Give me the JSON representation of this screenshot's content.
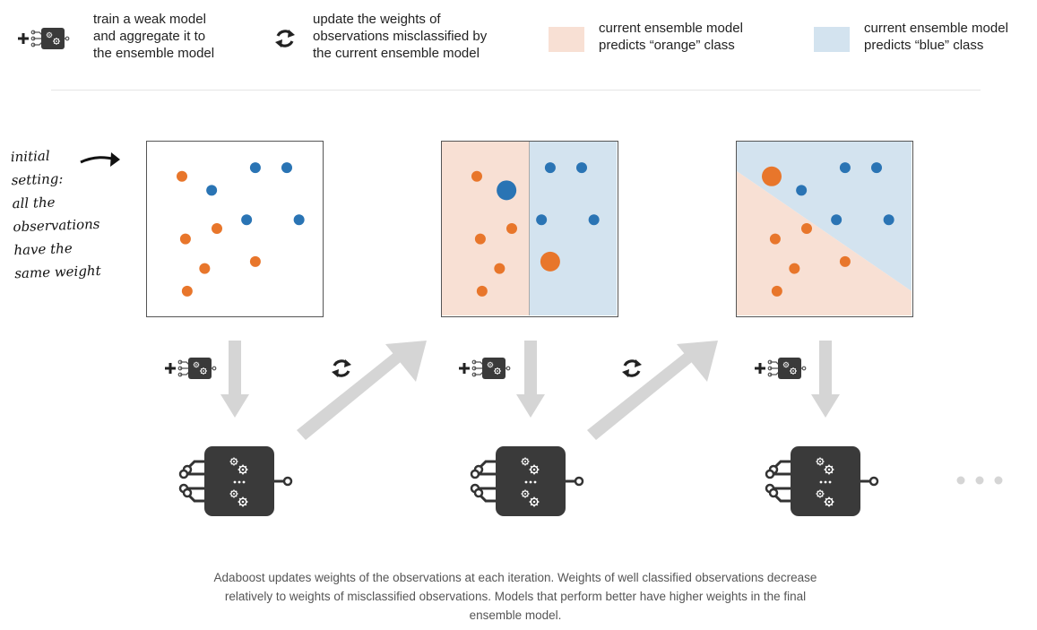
{
  "legend": {
    "train_text": "train a weak model\nand aggregate it to\nthe ensemble model",
    "update_text": "update the weights of\nobservations misclassified by\nthe current ensemble model",
    "orange_text": "current ensemble model\npredicts “orange” class",
    "blue_text": "current ensemble model\npredicts “blue” class"
  },
  "initial_note": "initial\nsetting:\nall the\nobservations\nhave the\nsame weight",
  "caption": "Adaboost updates weights of the observations at each iteration. Weights of well classified observations decrease\nrelatively to weights of misclassified observations. Models that perform better have higher weights in the final\nensemble model.",
  "colors": {
    "orange_point": "#e8762b",
    "blue_point": "#2a74b4",
    "orange_region": "#f8e0d4",
    "blue_region": "#d3e3ef",
    "arrow": "#d5d5d5",
    "model_box": "#3a3a3a"
  },
  "panels": [
    {
      "name": "iteration-1",
      "regions": "none",
      "points": [
        {
          "cls": "orange",
          "x": 0.2,
          "y": 0.2,
          "w": 1
        },
        {
          "cls": "blue",
          "x": 0.62,
          "y": 0.15,
          "w": 1
        },
        {
          "cls": "blue",
          "x": 0.8,
          "y": 0.15,
          "w": 1
        },
        {
          "cls": "blue",
          "x": 0.37,
          "y": 0.28,
          "w": 1
        },
        {
          "cls": "blue",
          "x": 0.57,
          "y": 0.45,
          "w": 1
        },
        {
          "cls": "blue",
          "x": 0.87,
          "y": 0.45,
          "w": 1
        },
        {
          "cls": "orange",
          "x": 0.4,
          "y": 0.5,
          "w": 1
        },
        {
          "cls": "orange",
          "x": 0.22,
          "y": 0.56,
          "w": 1
        },
        {
          "cls": "orange",
          "x": 0.62,
          "y": 0.69,
          "w": 1
        },
        {
          "cls": "orange",
          "x": 0.33,
          "y": 0.73,
          "w": 1
        },
        {
          "cls": "orange",
          "x": 0.23,
          "y": 0.86,
          "w": 1
        }
      ]
    },
    {
      "name": "iteration-2",
      "regions": "vertical",
      "points": [
        {
          "cls": "orange",
          "x": 0.2,
          "y": 0.2,
          "w": 1
        },
        {
          "cls": "blue",
          "x": 0.62,
          "y": 0.15,
          "w": 1
        },
        {
          "cls": "blue",
          "x": 0.8,
          "y": 0.15,
          "w": 1
        },
        {
          "cls": "blue",
          "x": 0.37,
          "y": 0.28,
          "w": 2
        },
        {
          "cls": "blue",
          "x": 0.57,
          "y": 0.45,
          "w": 1
        },
        {
          "cls": "blue",
          "x": 0.87,
          "y": 0.45,
          "w": 1
        },
        {
          "cls": "orange",
          "x": 0.4,
          "y": 0.5,
          "w": 1
        },
        {
          "cls": "orange",
          "x": 0.22,
          "y": 0.56,
          "w": 1
        },
        {
          "cls": "orange",
          "x": 0.62,
          "y": 0.69,
          "w": 2
        },
        {
          "cls": "orange",
          "x": 0.33,
          "y": 0.73,
          "w": 1
        },
        {
          "cls": "orange",
          "x": 0.23,
          "y": 0.86,
          "w": 1
        }
      ]
    },
    {
      "name": "iteration-3",
      "regions": "diagonal",
      "points": [
        {
          "cls": "orange",
          "x": 0.2,
          "y": 0.2,
          "w": 2
        },
        {
          "cls": "blue",
          "x": 0.62,
          "y": 0.15,
          "w": 1
        },
        {
          "cls": "blue",
          "x": 0.8,
          "y": 0.15,
          "w": 1
        },
        {
          "cls": "blue",
          "x": 0.37,
          "y": 0.28,
          "w": 1
        },
        {
          "cls": "blue",
          "x": 0.57,
          "y": 0.45,
          "w": 1
        },
        {
          "cls": "blue",
          "x": 0.87,
          "y": 0.45,
          "w": 1
        },
        {
          "cls": "orange",
          "x": 0.4,
          "y": 0.5,
          "w": 1
        },
        {
          "cls": "orange",
          "x": 0.22,
          "y": 0.56,
          "w": 1
        },
        {
          "cls": "orange",
          "x": 0.62,
          "y": 0.69,
          "w": 1
        },
        {
          "cls": "orange",
          "x": 0.33,
          "y": 0.73,
          "w": 1
        },
        {
          "cls": "orange",
          "x": 0.23,
          "y": 0.86,
          "w": 1
        }
      ]
    }
  ]
}
